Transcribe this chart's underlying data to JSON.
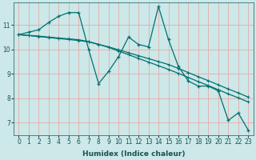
{
  "xlabel": "Humidex (Indice chaleur)",
  "bg_color": "#cce8e8",
  "grid_color": "#e8aaaa",
  "line_color": "#007070",
  "xlim": [
    -0.5,
    23.5
  ],
  "ylim": [
    6.5,
    11.9
  ],
  "xticks": [
    0,
    1,
    2,
    3,
    4,
    5,
    6,
    7,
    8,
    9,
    10,
    11,
    12,
    13,
    14,
    15,
    16,
    17,
    18,
    19,
    20,
    21,
    22,
    23
  ],
  "yticks": [
    7,
    8,
    9,
    10,
    11
  ],
  "series1_x": [
    0,
    1,
    2,
    3,
    4,
    5,
    6,
    7,
    8,
    9,
    10,
    11,
    12,
    13,
    14,
    15,
    16,
    17,
    18,
    19,
    20,
    21,
    22,
    23
  ],
  "series1_y": [
    10.6,
    10.7,
    10.8,
    11.1,
    11.35,
    11.5,
    11.5,
    10.0,
    8.6,
    9.1,
    9.7,
    10.5,
    10.2,
    10.1,
    11.75,
    10.4,
    9.3,
    8.7,
    8.5,
    8.5,
    8.3,
    7.1,
    7.4,
    6.7
  ],
  "series2_x": [
    0,
    1,
    2,
    3,
    4,
    5,
    6,
    7,
    8,
    9,
    10,
    11,
    12,
    13,
    14,
    15,
    16,
    17,
    18,
    19,
    20,
    21,
    22,
    23
  ],
  "series2_y": [
    10.6,
    10.56,
    10.52,
    10.48,
    10.44,
    10.4,
    10.36,
    10.3,
    10.2,
    10.1,
    9.98,
    9.86,
    9.74,
    9.62,
    9.5,
    9.38,
    9.22,
    9.05,
    8.88,
    8.72,
    8.55,
    8.38,
    8.22,
    8.05
  ],
  "series3_x": [
    0,
    1,
    2,
    3,
    4,
    5,
    6,
    7,
    8,
    9,
    10,
    11,
    12,
    13,
    14,
    15,
    16,
    17,
    18,
    19,
    20,
    21,
    22,
    23
  ],
  "series3_y": [
    10.6,
    10.57,
    10.54,
    10.5,
    10.46,
    10.43,
    10.39,
    10.32,
    10.2,
    10.08,
    9.93,
    9.78,
    9.63,
    9.48,
    9.33,
    9.18,
    9.02,
    8.85,
    8.68,
    8.52,
    8.35,
    8.18,
    8.02,
    7.85
  ],
  "xlabel_fontsize": 6.5,
  "tick_fontsize": 5.5,
  "line_width": 0.9,
  "marker_size": 3.0
}
